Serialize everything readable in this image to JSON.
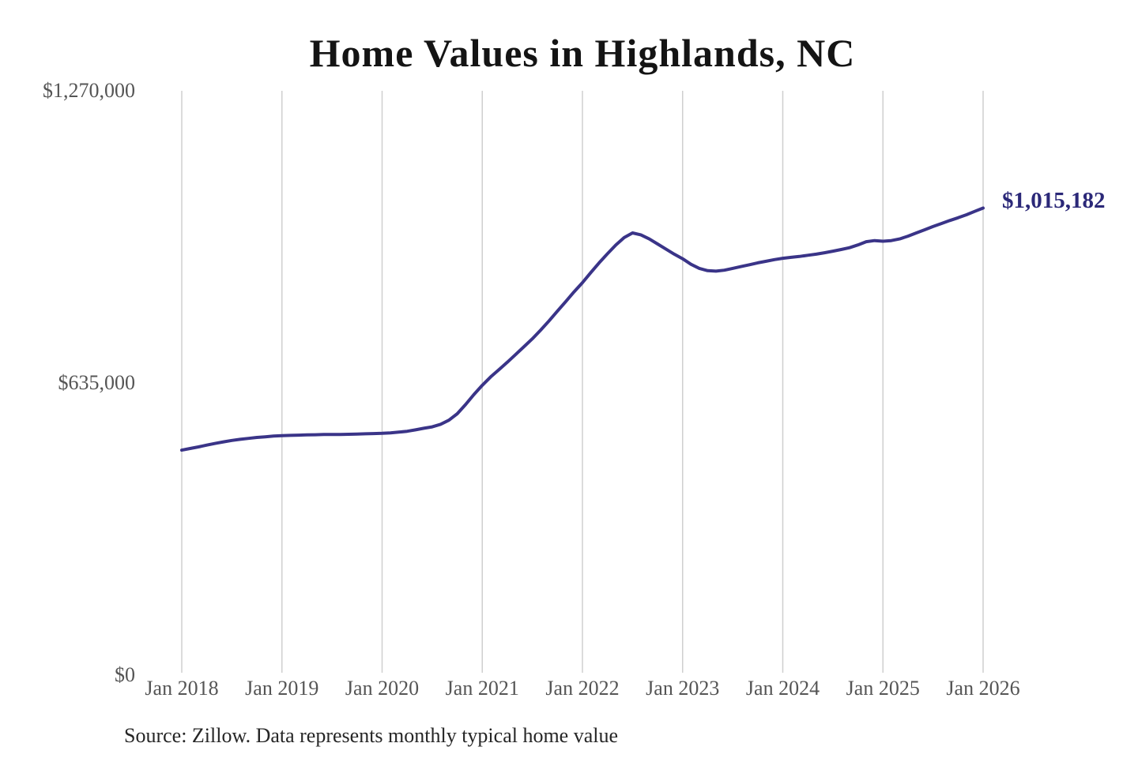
{
  "page": {
    "background": "#ffffff"
  },
  "chart_data": {
    "type": "line",
    "title": "Home Values in Highlands, NC",
    "source": "Source: Zillow. Data represents monthly typical home value",
    "end_label": "$1,015,182",
    "latest_value": 1015182,
    "xlabel": "",
    "ylabel": "",
    "ylim": [
      0,
      1270000
    ],
    "grid": "vertical-only",
    "legend": "none",
    "y_ticks": [
      {
        "value": 0,
        "label": "$0"
      },
      {
        "value": 635000,
        "label": "$635,000"
      },
      {
        "value": 1270000,
        "label": "$1,270,000"
      }
    ],
    "x_ticks": [
      "Jan 2018",
      "Jan 2019",
      "Jan 2020",
      "Jan 2021",
      "Jan 2022",
      "Jan 2023",
      "Jan 2024",
      "Jan 2025",
      "Jan 2026"
    ],
    "series": [
      {
        "name": "Monthly typical home value",
        "start": "Jan 2018",
        "interval": "monthly",
        "values": [
          489000,
          492500,
          496000,
          500000,
          503500,
          507000,
          510000,
          512500,
          514500,
          516500,
          518000,
          519500,
          520500,
          521000,
          521500,
          522000,
          522500,
          523000,
          523000,
          523000,
          523500,
          524000,
          524500,
          525000,
          525500,
          526500,
          528000,
          530000,
          533000,
          536500,
          539500,
          545000,
          554000,
          568000,
          588000,
          610000,
          630000,
          648000,
          664000,
          680000,
          697000,
          714000,
          731000,
          750000,
          770000,
          791000,
          812000,
          833000,
          853000,
          875000,
          896000,
          916000,
          935000,
          951000,
          961000,
          957000,
          948000,
          937000,
          926000,
          915000,
          905000,
          893000,
          884000,
          879000,
          878000,
          880000,
          884000,
          888000,
          892000,
          896000,
          899500,
          903000,
          906000,
          908000,
          910000,
          912500,
          915000,
          918000,
          921500,
          925000,
          929000,
          935000,
          942000,
          944500,
          943000,
          944500,
          948000,
          954000,
          961000,
          968000,
          975000,
          981500,
          988000,
          994000,
          1000500,
          1008000,
          1015182
        ]
      }
    ],
    "colors": {
      "line": "#3a3488",
      "annotation": "#2b2878",
      "grid": "#cfcfcf",
      "tick_label": "#555555",
      "title": "#141414",
      "source_text": "#262626",
      "background": "#ffffff"
    }
  }
}
